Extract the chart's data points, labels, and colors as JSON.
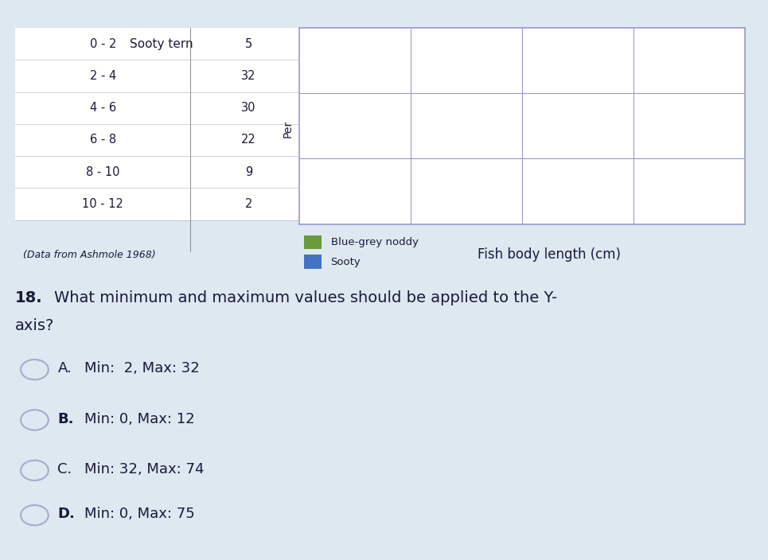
{
  "table_headers": [
    "Sooty tern",
    ""
  ],
  "table_rows": [
    [
      "0 - 2",
      "5"
    ],
    [
      "2 - 4",
      "32"
    ],
    [
      "4 - 6",
      "30"
    ],
    [
      "6 - 8",
      "22"
    ],
    [
      "8 - 10",
      "9"
    ],
    [
      "10 - 12",
      "2"
    ]
  ],
  "table_caption": "(Data from Ashmole 1968)",
  "legend_items": [
    {
      "label": "Blue-grey noddy",
      "color": "#6a9a3a"
    },
    {
      "label": "Sooty",
      "color": "#4472c4"
    }
  ],
  "chart_xlabel": "Fish body length (cm)",
  "ylabel": "Per",
  "chart_grid_rows": 3,
  "chart_grid_cols": 4,
  "question_number": "18.",
  "question_text": "What minimum and maximum values should be applied to the Y-\naxis?",
  "options": [
    {
      "letter": "A.",
      "text": "Min:  2, Max: 32"
    },
    {
      "letter": "B.",
      "text": "Min: 0, Max: 12"
    },
    {
      "letter": "C.",
      "text": "Min: 32, Max: 74"
    },
    {
      "letter": "D.",
      "text": "Min: 0, Max: 75"
    }
  ],
  "bg_color": "#dde8f0",
  "table_bg": "#ffffff",
  "chart_bg": "#ffffff",
  "chart_border_color": "#9999cc",
  "header_bar_color": "#ccccdd",
  "top_bar_color": "#6aaa46",
  "font_color": "#1a1a3a",
  "option_circle_color": "#aaaacc"
}
